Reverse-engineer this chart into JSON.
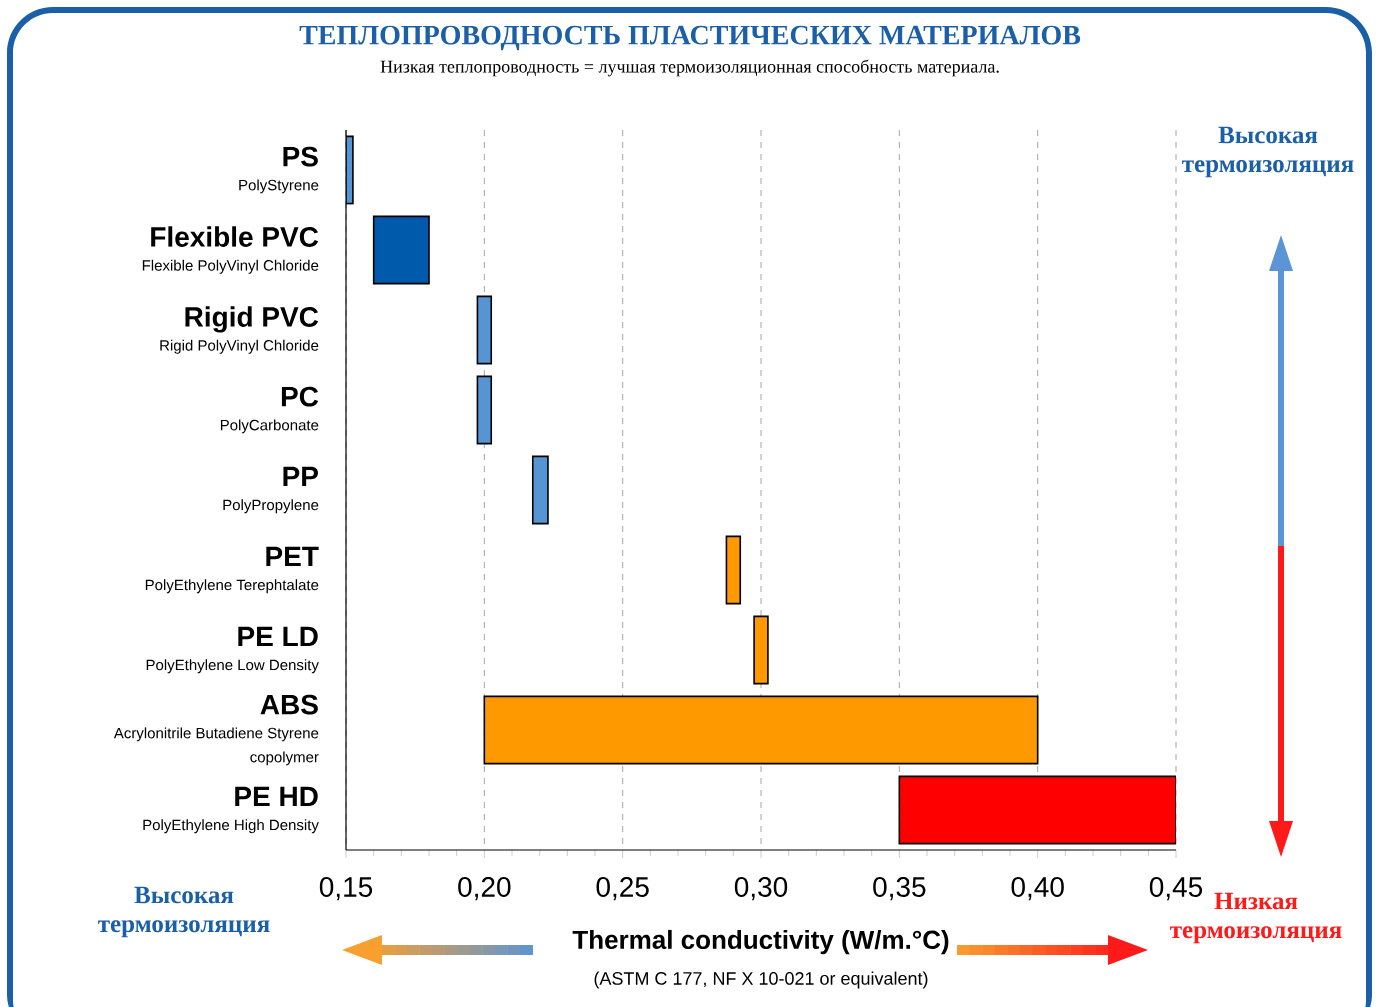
{
  "chart_data": {
    "type": "bar",
    "orientation": "horizontal",
    "title": "ТЕПЛОПРОВОДНОСТЬ ПЛАСТИЧЕСКИХ МАТЕРИАЛОВ",
    "subtitle": "Низкая теплопроводность = лучшая термоизоляционная способность материала.",
    "xlabel": "Thermal conductivity (W/m.°C)",
    "categories": [
      "PS",
      "Flexible PVC",
      "Rigid PVC",
      "PC",
      "PP",
      "PET",
      "PE LD",
      "ABS",
      "PE HD"
    ],
    "base": [
      0.15,
      0.16,
      0.1975,
      0.1975,
      0.2175,
      0.2875,
      0.2975,
      0.2,
      0.35
    ],
    "values": [
      0.0025,
      0.02,
      0.005,
      0.005,
      0.0055,
      0.005,
      0.005,
      0.2,
      0.1
    ],
    "colors": [
      "#5695d3",
      "#005aab",
      "#5695d3",
      "#5695d3",
      "#5695d3",
      "#ff9900",
      "#ff9900",
      "#ff9900",
      "#ff0000"
    ],
    "xlim": [
      0.15,
      0.45
    ],
    "xticks": [
      {
        "value": 0.15,
        "label": "0,15"
      },
      {
        "value": 0.2,
        "label": "0,20"
      },
      {
        "value": 0.25,
        "label": "0,25"
      },
      {
        "value": 0.3,
        "label": "0,30"
      },
      {
        "value": 0.35,
        "label": "0,35"
      },
      {
        "value": 0.4,
        "label": "0,40"
      },
      {
        "value": 0.45,
        "label": "0,45"
      }
    ],
    "grid": "x",
    "annotations": [
      "PolyStyrene",
      "Flexible PolyVinyl Chloride",
      "Rigid PolyVinyl Chloride",
      "PolyCarbonate",
      "PolyPropylene",
      "PolyEthylene Terephtalate",
      "PolyEthylene Low Density",
      "Acrylonitrile Butadiene Styrene copolymer",
      "PolyEthylene High Density",
      "Высокая термоизоляция",
      "Высокая термоизоляция",
      "Низкая термоизоляция",
      "(ASTM C 177, NF X 10-021 or equivalent)"
    ]
  }
}
